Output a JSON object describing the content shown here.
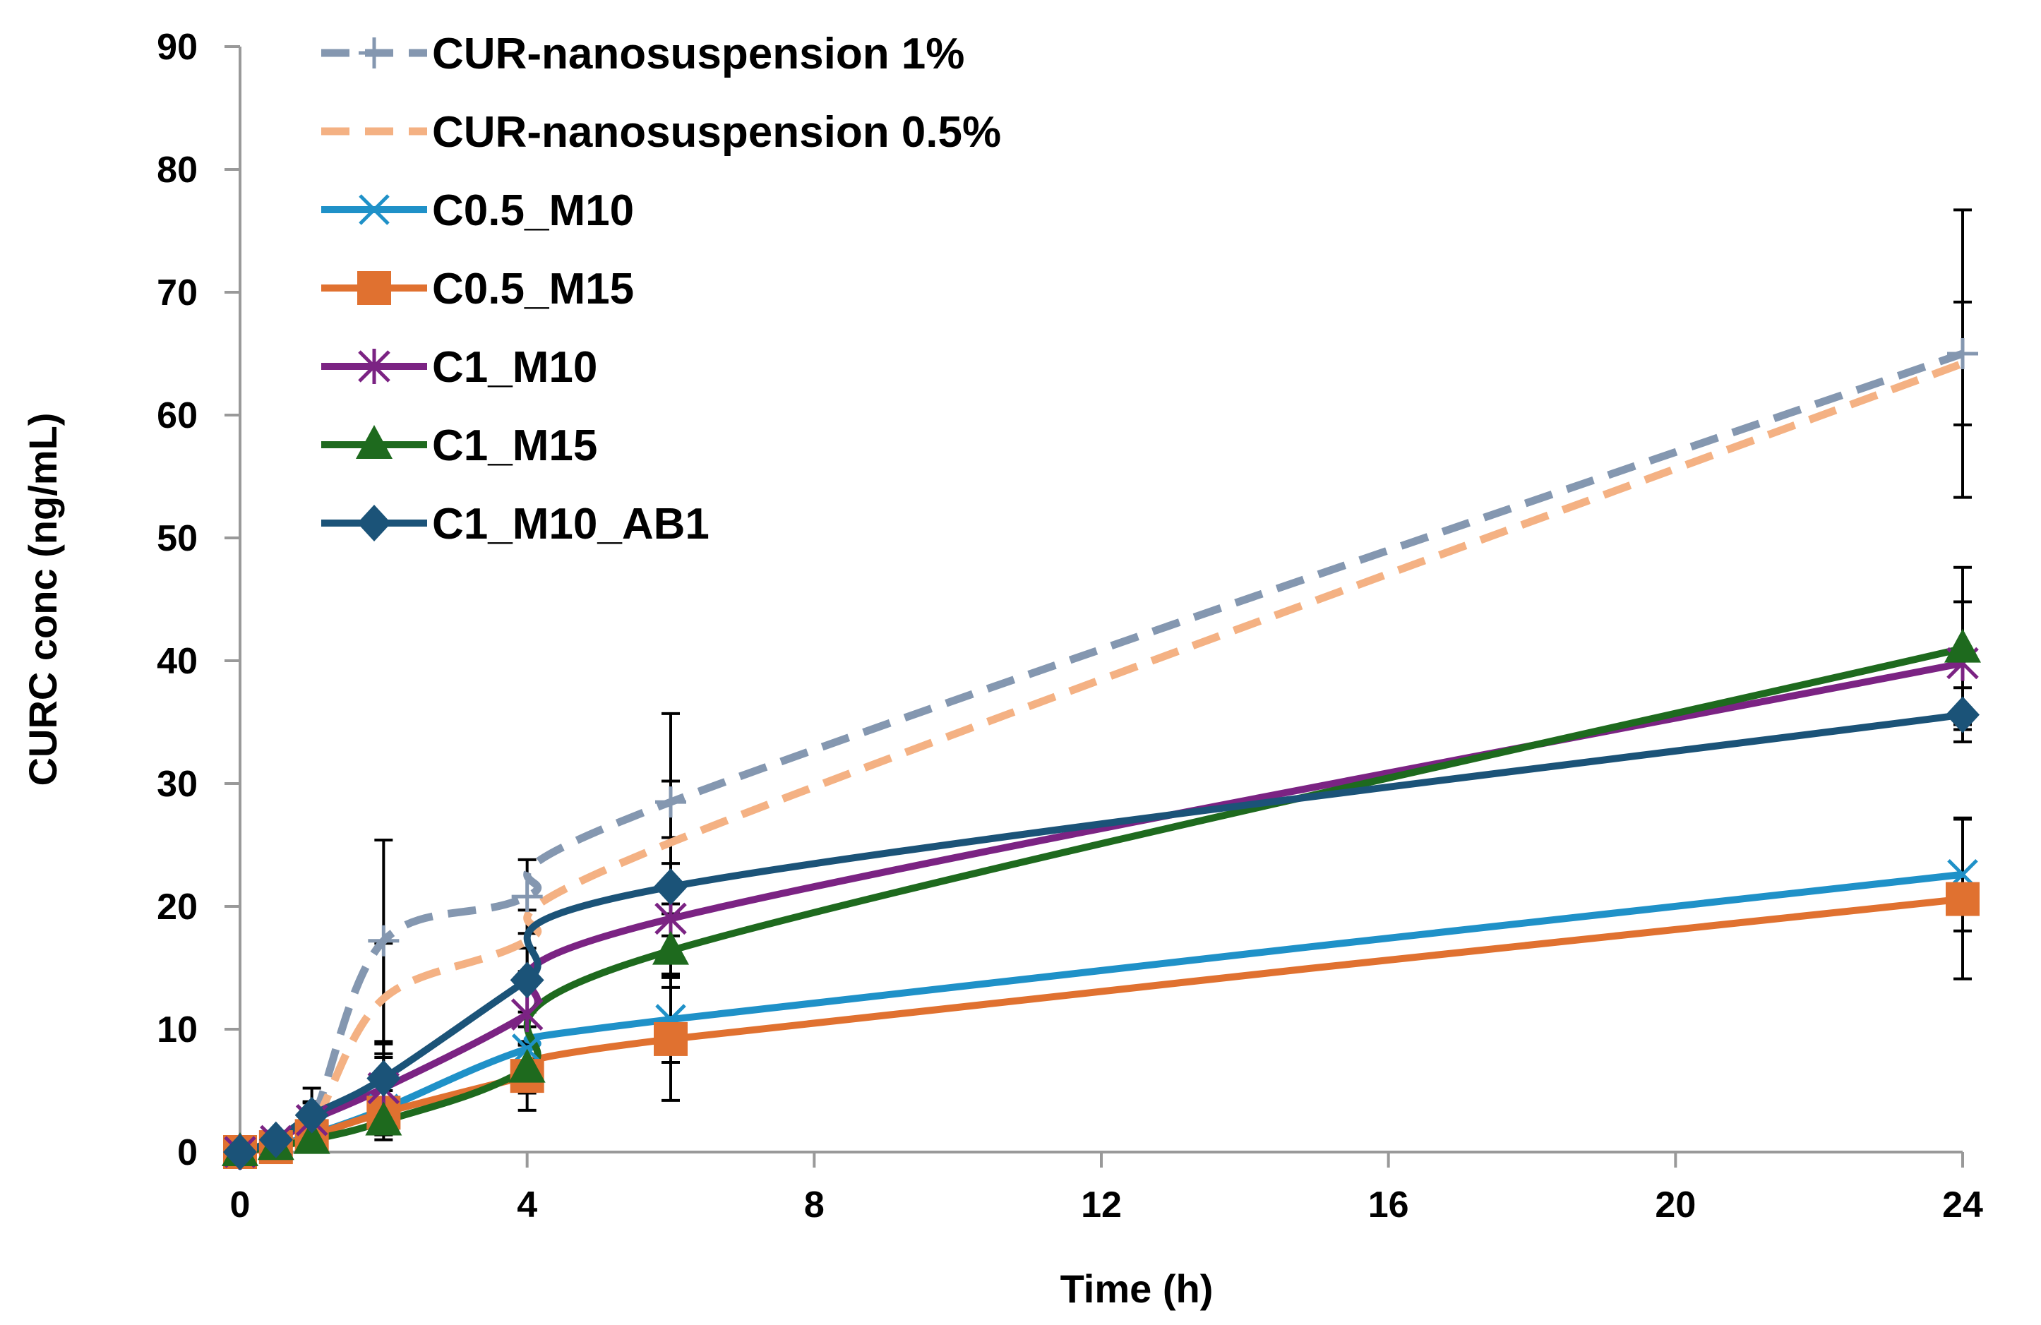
{
  "chart_data": {
    "type": "line",
    "title": "",
    "xlabel": "Time (h)",
    "ylabel": "CURC conc (ng/mL)",
    "xlim": [
      0,
      24
    ],
    "ylim": [
      0,
      90
    ],
    "xticks": [
      "0",
      "4",
      "8",
      "12",
      "16",
      "20",
      "24"
    ],
    "yticks": [
      "0",
      "10",
      "20",
      "30",
      "40",
      "50",
      "60",
      "70",
      "80",
      "90"
    ],
    "grid": false,
    "legend_position": "top-left",
    "x": [
      0,
      0.5,
      1,
      2,
      4,
      6,
      24
    ],
    "series": [
      {
        "name": "CUR-nanosuspension 1%",
        "color": "#8497B0",
        "dash": true,
        "marker": "plus",
        "values": [
          0,
          0.8,
          2.5,
          17.2,
          20.8,
          28.5,
          65
        ],
        "err": [
          0,
          0.6,
          1.5,
          8.2,
          3,
          7.2,
          11.7
        ]
      },
      {
        "name": "CUR-nanosuspension 0.5%",
        "color": "#F4B183",
        "dash": true,
        "marker": "none",
        "values": [
          0,
          0.6,
          2,
          12.5,
          17.2,
          25.2,
          64.2
        ],
        "err": [
          0,
          0.5,
          1.2,
          4.5,
          2.5,
          5,
          5
        ]
      },
      {
        "name": "C0.5_M10",
        "color": "#1F91C8",
        "dash": false,
        "marker": "x",
        "values": [
          0,
          0.5,
          1.4,
          3.5,
          8.4,
          10.8,
          22.6
        ],
        "err": [
          0,
          0.4,
          1,
          2,
          1.8,
          3.5,
          4.6
        ]
      },
      {
        "name": "C0.5_M15",
        "color": "#E07130",
        "dash": false,
        "marker": "square",
        "values": [
          0,
          0.4,
          1.3,
          3.2,
          6.2,
          9.2,
          20.6
        ],
        "err": [
          0,
          0.4,
          1,
          1.8,
          2.8,
          5,
          6.5
        ]
      },
      {
        "name": "C1_M10",
        "color": "#7B2383",
        "dash": false,
        "marker": "asterisk",
        "values": [
          0,
          0.9,
          2.6,
          5.2,
          11.2,
          19,
          39.8
        ],
        "err": [
          0,
          0.5,
          1.5,
          2.5,
          2.5,
          4.5,
          5
        ]
      },
      {
        "name": "C1_M15",
        "color": "#1E6A1E",
        "dash": false,
        "marker": "triangle",
        "values": [
          0,
          0.5,
          1,
          2.5,
          6.8,
          16.4,
          41
        ],
        "err": [
          0,
          0.4,
          0.8,
          1.5,
          2,
          3,
          6.6
        ]
      },
      {
        "name": "C1_M10_AB1",
        "color": "#1B5378",
        "dash": false,
        "marker": "diamond",
        "values": [
          0,
          1,
          3,
          6,
          14,
          21.6,
          35.6
        ],
        "err": [
          0,
          0.6,
          2.2,
          2.8,
          2.6,
          4,
          2.2
        ]
      }
    ]
  }
}
